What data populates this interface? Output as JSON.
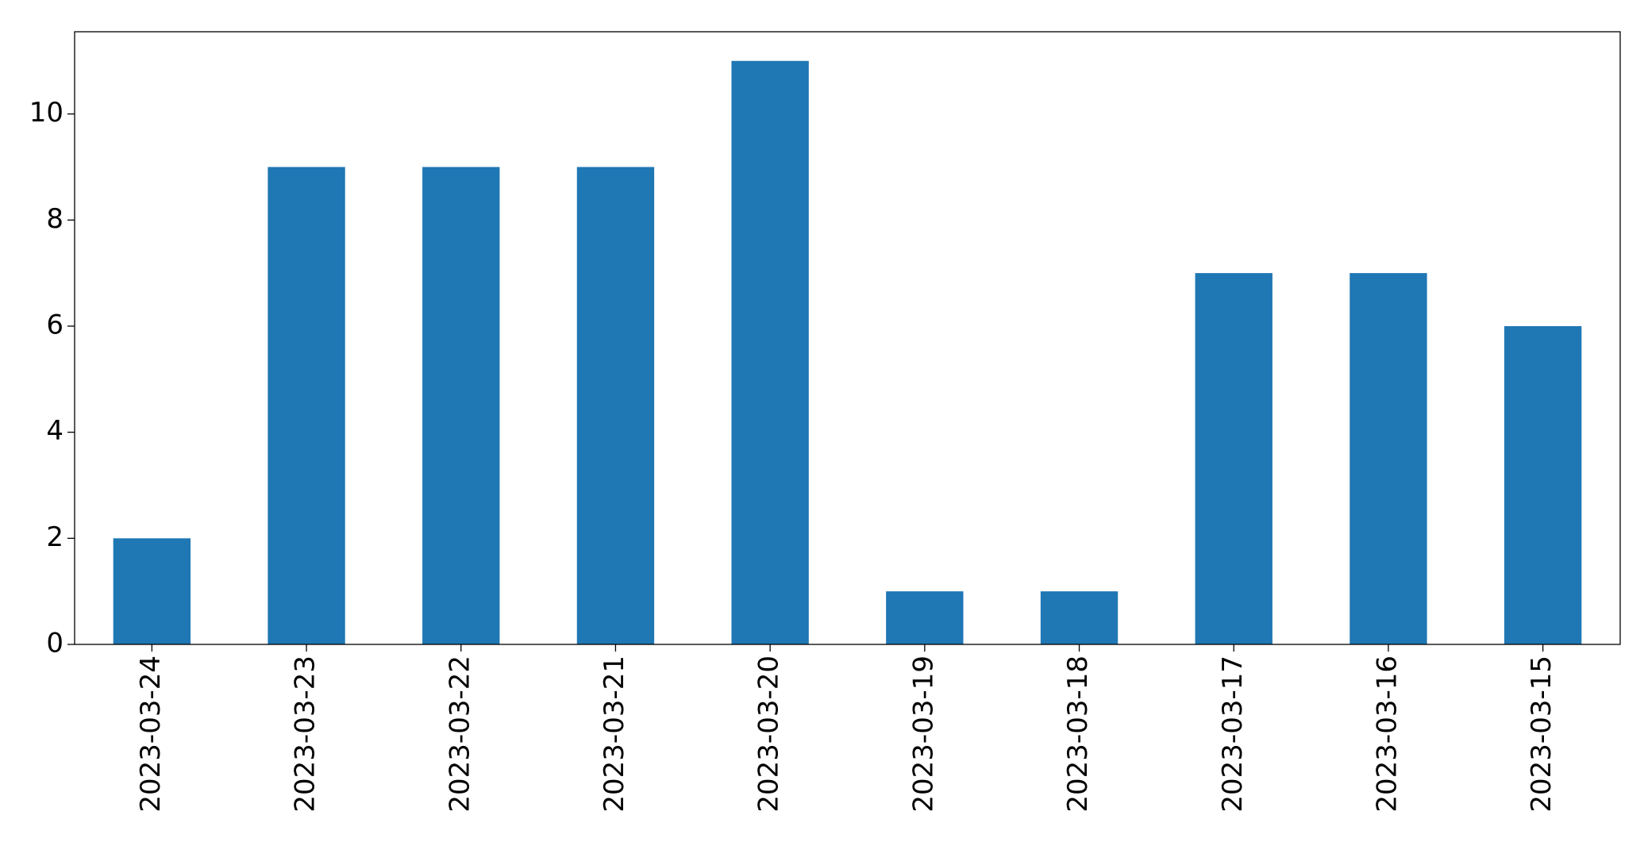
{
  "chart_data": {
    "type": "bar",
    "categories": [
      "2023-03-24",
      "2023-03-23",
      "2023-03-22",
      "2023-03-21",
      "2023-03-20",
      "2023-03-19",
      "2023-03-18",
      "2023-03-17",
      "2023-03-16",
      "2023-03-15"
    ],
    "values": [
      2,
      9,
      9,
      9,
      11,
      1,
      1,
      7,
      7,
      6
    ],
    "color": "#1f77b4",
    "ylim": [
      0,
      11.55
    ],
    "yticks": [
      0,
      2,
      4,
      6,
      8,
      10
    ],
    "grid": false
  }
}
